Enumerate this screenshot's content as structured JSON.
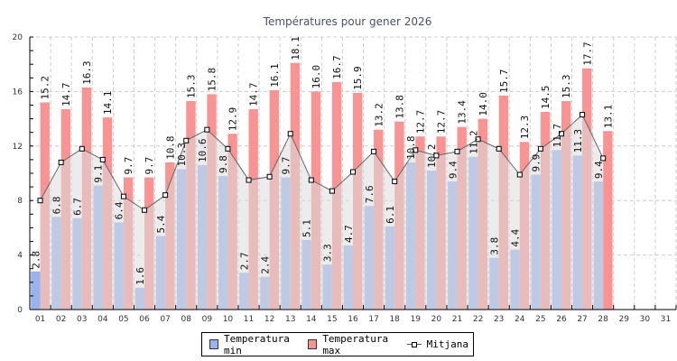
{
  "chart_data": {
    "type": "bar",
    "title": "Températures pour gener 2026",
    "xlabel": "",
    "ylabel": "",
    "ylim": [
      0,
      20
    ],
    "yticks": [
      0,
      4,
      8,
      12,
      16,
      20
    ],
    "grid": true,
    "legend_position": "bottom-center",
    "categories": [
      "01",
      "02",
      "03",
      "04",
      "05",
      "06",
      "07",
      "08",
      "09",
      "10",
      "11",
      "12",
      "13",
      "14",
      "15",
      "16",
      "17",
      "18",
      "19",
      "20",
      "21",
      "22",
      "23",
      "24",
      "25",
      "26",
      "27",
      "28",
      "29",
      "30",
      "31"
    ],
    "series": [
      {
        "name": "Temperatura min",
        "type": "bar",
        "color": "#99b3ee",
        "values": [
          2.8,
          6.8,
          6.7,
          9.1,
          6.4,
          1.6,
          5.4,
          10.3,
          10.6,
          9.8,
          2.7,
          2.4,
          9.7,
          5.1,
          3.3,
          4.7,
          7.6,
          6.1,
          10.8,
          10.2,
          9.4,
          11.2,
          3.8,
          4.4,
          9.9,
          11.7,
          11.3,
          9.4,
          null,
          null,
          null
        ]
      },
      {
        "name": "Temperatura max",
        "type": "bar",
        "color": "#f99494",
        "values": [
          15.2,
          14.7,
          16.3,
          14.1,
          9.7,
          9.7,
          10.8,
          15.3,
          15.8,
          12.9,
          14.7,
          16.1,
          18.1,
          16.0,
          16.7,
          15.9,
          13.2,
          13.8,
          12.7,
          12.7,
          13.4,
          14.0,
          15.7,
          12.3,
          14.5,
          15.3,
          17.7,
          13.1,
          null,
          null,
          null
        ]
      },
      {
        "name": "Mitjana",
        "type": "area-line",
        "color": "#666666",
        "fill": "#dcdcdc",
        "values": [
          8.0,
          10.8,
          11.8,
          11.0,
          8.3,
          7.3,
          8.4,
          12.4,
          13.2,
          11.8,
          9.5,
          9.75,
          12.9,
          9.5,
          8.7,
          10.1,
          11.6,
          9.4,
          11.7,
          11.3,
          11.6,
          12.5,
          11.8,
          9.9,
          11.8,
          12.9,
          14.3,
          11.1,
          null,
          null,
          null
        ]
      }
    ]
  },
  "legend": {
    "items": [
      {
        "label": "Temperatura min",
        "color": "#99b3ee"
      },
      {
        "label": "Temperatura max",
        "color": "#f99494"
      },
      {
        "label": "Mitjana",
        "color": "#666666"
      }
    ]
  }
}
